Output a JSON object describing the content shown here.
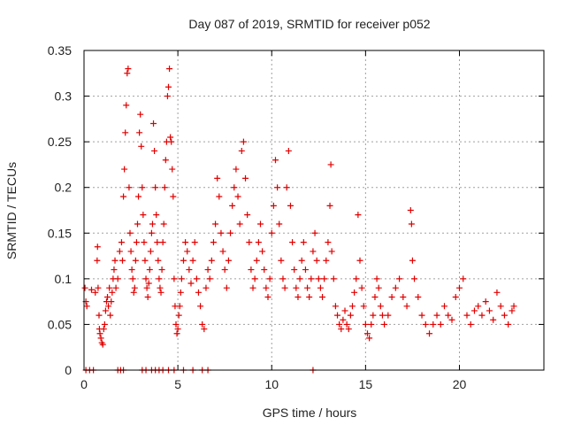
{
  "chart_data": {
    "type": "scatter",
    "title": "Day 087 of 2019, SRMTID for receiver p052",
    "xlabel": "GPS time / hours",
    "ylabel": "SRMTID / TECUs",
    "xlim": [
      0,
      24.5
    ],
    "ylim": [
      0,
      0.35
    ],
    "xticks": [
      0,
      5,
      10,
      15,
      20
    ],
    "xtick_labels": [
      "0",
      "5",
      "10",
      "15",
      "20"
    ],
    "yticks": [
      0,
      0.05,
      0.1,
      0.15,
      0.2,
      0.25,
      0.3,
      0.35
    ],
    "ytick_labels": [
      "0",
      "0.05",
      "0.1",
      "0.15",
      "0.2",
      "0.25",
      "0.3",
      "0.35"
    ],
    "grid": true,
    "marker": "+",
    "color": "#e00000",
    "series": [
      {
        "name": "SRMTID",
        "points": [
          [
            0.05,
            0.09
          ],
          [
            0.1,
            0.075
          ],
          [
            0.15,
            0.07
          ],
          [
            0.4,
            0.088
          ],
          [
            0.6,
            0.085
          ],
          [
            0.7,
            0.12
          ],
          [
            0.72,
            0.135
          ],
          [
            0.75,
            0.09
          ],
          [
            0.8,
            0.06
          ],
          [
            0.82,
            0.045
          ],
          [
            0.85,
            0.04
          ],
          [
            0.9,
            0.035
          ],
          [
            0.95,
            0.03
          ],
          [
            1.0,
            0.028
          ],
          [
            1.05,
            0.045
          ],
          [
            1.1,
            0.05
          ],
          [
            1.15,
            0.065
          ],
          [
            1.2,
            0.075
          ],
          [
            1.25,
            0.08
          ],
          [
            1.3,
            0.07
          ],
          [
            1.35,
            0.09
          ],
          [
            1.4,
            0.06
          ],
          [
            1.45,
            0.075
          ],
          [
            1.5,
            0.085
          ],
          [
            1.55,
            0.1
          ],
          [
            1.6,
            0.11
          ],
          [
            1.65,
            0.12
          ],
          [
            1.7,
            0.09
          ],
          [
            1.8,
            0.1
          ],
          [
            1.9,
            0.13
          ],
          [
            2.0,
            0.14
          ],
          [
            2.05,
            0.12
          ],
          [
            2.1,
            0.19
          ],
          [
            2.15,
            0.22
          ],
          [
            2.2,
            0.26
          ],
          [
            2.25,
            0.29
          ],
          [
            2.3,
            0.325
          ],
          [
            2.35,
            0.33
          ],
          [
            2.4,
            0.2
          ],
          [
            2.45,
            0.15
          ],
          [
            2.5,
            0.13
          ],
          [
            2.55,
            0.11
          ],
          [
            2.6,
            0.1
          ],
          [
            2.65,
            0.085
          ],
          [
            2.7,
            0.09
          ],
          [
            2.75,
            0.12
          ],
          [
            2.8,
            0.14
          ],
          [
            2.85,
            0.16
          ],
          [
            2.9,
            0.19
          ],
          [
            2.95,
            0.26
          ],
          [
            3.0,
            0.28
          ],
          [
            3.05,
            0.245
          ],
          [
            3.1,
            0.2
          ],
          [
            3.15,
            0.17
          ],
          [
            3.2,
            0.14
          ],
          [
            3.25,
            0.12
          ],
          [
            3.3,
            0.1
          ],
          [
            3.35,
            0.09
          ],
          [
            3.4,
            0.08
          ],
          [
            3.45,
            0.095
          ],
          [
            3.5,
            0.11
          ],
          [
            3.55,
            0.13
          ],
          [
            3.6,
            0.15
          ],
          [
            3.65,
            0.16
          ],
          [
            3.7,
            0.27
          ],
          [
            3.75,
            0.24
          ],
          [
            3.8,
            0.2
          ],
          [
            3.85,
            0.17
          ],
          [
            3.9,
            0.14
          ],
          [
            3.95,
            0.12
          ],
          [
            4.0,
            0.1
          ],
          [
            4.05,
            0.09
          ],
          [
            4.1,
            0.085
          ],
          [
            4.15,
            0.11
          ],
          [
            4.2,
            0.14
          ],
          [
            4.25,
            0.16
          ],
          [
            4.3,
            0.2
          ],
          [
            4.35,
            0.23
          ],
          [
            4.4,
            0.25
          ],
          [
            4.45,
            0.3
          ],
          [
            4.5,
            0.31
          ],
          [
            4.55,
            0.33
          ],
          [
            4.6,
            0.255
          ],
          [
            4.65,
            0.25
          ],
          [
            4.7,
            0.22
          ],
          [
            4.75,
            0.19
          ],
          [
            4.8,
            0.1
          ],
          [
            4.85,
            0.07
          ],
          [
            4.9,
            0.05
          ],
          [
            4.95,
            0.04
          ],
          [
            5.0,
            0.045
          ],
          [
            5.05,
            0.06
          ],
          [
            5.1,
            0.07
          ],
          [
            5.15,
            0.085
          ],
          [
            5.2,
            0.1
          ],
          [
            5.3,
            0.12
          ],
          [
            5.4,
            0.14
          ],
          [
            5.5,
            0.13
          ],
          [
            5.6,
            0.11
          ],
          [
            5.7,
            0.095
          ],
          [
            5.8,
            0.12
          ],
          [
            5.9,
            0.14
          ],
          [
            6.0,
            0.1
          ],
          [
            6.1,
            0.085
          ],
          [
            6.2,
            0.07
          ],
          [
            6.3,
            0.05
          ],
          [
            6.4,
            0.045
          ],
          [
            6.5,
            0.09
          ],
          [
            6.6,
            0.11
          ],
          [
            6.7,
            0.1
          ],
          [
            6.8,
            0.12
          ],
          [
            6.9,
            0.14
          ],
          [
            7.0,
            0.16
          ],
          [
            7.1,
            0.21
          ],
          [
            7.2,
            0.19
          ],
          [
            7.3,
            0.15
          ],
          [
            7.4,
            0.13
          ],
          [
            7.5,
            0.11
          ],
          [
            7.6,
            0.09
          ],
          [
            7.7,
            0.12
          ],
          [
            7.8,
            0.15
          ],
          [
            7.9,
            0.18
          ],
          [
            8.0,
            0.2
          ],
          [
            8.1,
            0.22
          ],
          [
            8.2,
            0.19
          ],
          [
            8.3,
            0.16
          ],
          [
            8.4,
            0.24
          ],
          [
            8.5,
            0.25
          ],
          [
            8.6,
            0.21
          ],
          [
            8.7,
            0.17
          ],
          [
            8.8,
            0.14
          ],
          [
            8.9,
            0.11
          ],
          [
            9.0,
            0.09
          ],
          [
            9.1,
            0.1
          ],
          [
            9.2,
            0.12
          ],
          [
            9.3,
            0.14
          ],
          [
            9.4,
            0.16
          ],
          [
            9.5,
            0.13
          ],
          [
            9.6,
            0.11
          ],
          [
            9.7,
            0.09
          ],
          [
            9.8,
            0.08
          ],
          [
            9.9,
            0.1
          ],
          [
            10.0,
            0.15
          ],
          [
            10.1,
            0.18
          ],
          [
            10.2,
            0.23
          ],
          [
            10.3,
            0.2
          ],
          [
            10.4,
            0.16
          ],
          [
            10.5,
            0.12
          ],
          [
            10.6,
            0.1
          ],
          [
            10.7,
            0.09
          ],
          [
            10.8,
            0.2
          ],
          [
            10.9,
            0.24
          ],
          [
            11.0,
            0.18
          ],
          [
            11.1,
            0.14
          ],
          [
            11.2,
            0.11
          ],
          [
            11.3,
            0.09
          ],
          [
            11.4,
            0.08
          ],
          [
            11.5,
            0.1
          ],
          [
            11.6,
            0.12
          ],
          [
            11.7,
            0.14
          ],
          [
            11.8,
            0.11
          ],
          [
            11.9,
            0.09
          ],
          [
            12.0,
            0.08
          ],
          [
            12.1,
            0.1
          ],
          [
            12.2,
            0.13
          ],
          [
            12.3,
            0.15
          ],
          [
            12.4,
            0.12
          ],
          [
            12.5,
            0.1
          ],
          [
            12.6,
            0.09
          ],
          [
            12.7,
            0.08
          ],
          [
            12.8,
            0.1
          ],
          [
            12.9,
            0.12
          ],
          [
            13.0,
            0.14
          ],
          [
            13.1,
            0.18
          ],
          [
            13.15,
            0.225
          ],
          [
            13.2,
            0.13
          ],
          [
            13.3,
            0.1
          ],
          [
            13.4,
            0.07
          ],
          [
            13.5,
            0.06
          ],
          [
            13.6,
            0.05
          ],
          [
            13.7,
            0.045
          ],
          [
            13.8,
            0.055
          ],
          [
            13.9,
            0.065
          ],
          [
            14.0,
            0.05
          ],
          [
            14.1,
            0.045
          ],
          [
            14.2,
            0.06
          ],
          [
            14.3,
            0.07
          ],
          [
            14.4,
            0.085
          ],
          [
            14.5,
            0.1
          ],
          [
            14.6,
            0.17
          ],
          [
            14.7,
            0.12
          ],
          [
            14.8,
            0.09
          ],
          [
            14.9,
            0.07
          ],
          [
            15.0,
            0.05
          ],
          [
            15.1,
            0.04
          ],
          [
            15.2,
            0.035
          ],
          [
            15.3,
            0.05
          ],
          [
            15.4,
            0.06
          ],
          [
            15.5,
            0.08
          ],
          [
            15.6,
            0.1
          ],
          [
            15.7,
            0.09
          ],
          [
            15.8,
            0.07
          ],
          [
            15.9,
            0.06
          ],
          [
            16.0,
            0.05
          ],
          [
            16.2,
            0.06
          ],
          [
            16.4,
            0.08
          ],
          [
            16.6,
            0.09
          ],
          [
            16.8,
            0.1
          ],
          [
            17.0,
            0.08
          ],
          [
            17.2,
            0.07
          ],
          [
            17.4,
            0.175
          ],
          [
            17.45,
            0.16
          ],
          [
            17.5,
            0.12
          ],
          [
            17.6,
            0.1
          ],
          [
            17.8,
            0.08
          ],
          [
            18.0,
            0.06
          ],
          [
            18.2,
            0.05
          ],
          [
            18.4,
            0.04
          ],
          [
            18.6,
            0.05
          ],
          [
            18.8,
            0.06
          ],
          [
            19.0,
            0.05
          ],
          [
            19.2,
            0.07
          ],
          [
            19.4,
            0.06
          ],
          [
            19.6,
            0.055
          ],
          [
            19.8,
            0.08
          ],
          [
            20.0,
            0.09
          ],
          [
            20.2,
            0.1
          ],
          [
            20.4,
            0.06
          ],
          [
            20.6,
            0.05
          ],
          [
            20.8,
            0.065
          ],
          [
            21.0,
            0.07
          ],
          [
            21.2,
            0.06
          ],
          [
            21.4,
            0.075
          ],
          [
            21.6,
            0.065
          ],
          [
            21.8,
            0.055
          ],
          [
            22.0,
            0.085
          ],
          [
            22.2,
            0.07
          ],
          [
            22.4,
            0.06
          ],
          [
            22.6,
            0.05
          ],
          [
            22.8,
            0.065
          ],
          [
            22.9,
            0.07
          ],
          [
            0.1,
            0
          ],
          [
            0.3,
            0
          ],
          [
            0.5,
            0
          ],
          [
            1.8,
            0
          ],
          [
            1.95,
            0
          ],
          [
            2.1,
            0
          ],
          [
            3.1,
            0
          ],
          [
            3.3,
            0
          ],
          [
            3.6,
            0
          ],
          [
            3.8,
            0
          ],
          [
            4.0,
            0
          ],
          [
            4.2,
            0
          ],
          [
            4.5,
            0
          ],
          [
            4.8,
            0
          ],
          [
            5.3,
            0
          ],
          [
            5.8,
            0
          ],
          [
            6.3,
            0
          ],
          [
            6.6,
            0
          ],
          [
            12.2,
            0
          ]
        ]
      }
    ]
  }
}
